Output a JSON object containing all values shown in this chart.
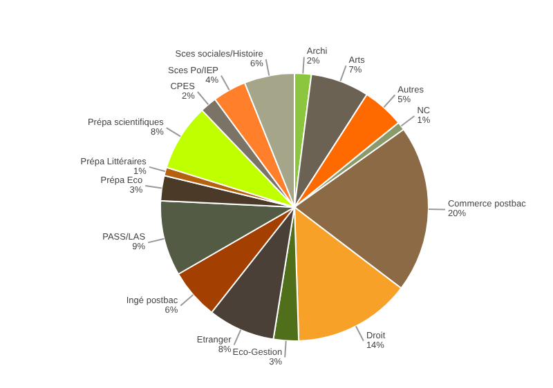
{
  "chart_data": {
    "type": "pie",
    "categories": [
      "Archi",
      "Arts",
      "Autres",
      "NC",
      "Commerce postbac",
      "Droit",
      "Eco-Gestion",
      "Etranger",
      "Ingé postbac",
      "PASS/LAS",
      "Prépa Eco",
      "Prépa Littéraires",
      "Prépa scientifiques",
      "CPES",
      "Sces Po/IEP",
      "Sces sociales/Histoire"
    ],
    "values": [
      2,
      7,
      5,
      1,
      20,
      14,
      3,
      8,
      6,
      9,
      3,
      1,
      8,
      2,
      4,
      6
    ],
    "value_labels": [
      "2%",
      "7%",
      "5%",
      "1%",
      "20%",
      "14%",
      "3%",
      "8%",
      "6%",
      "9%",
      "3%",
      "1%",
      "8%",
      "2%",
      "4%",
      "6%"
    ],
    "colors": [
      "#8cc63f",
      "#6b6253",
      "#ff6a00",
      "#8a9a6a",
      "#8c6a46",
      "#f7a128",
      "#4f6f1a",
      "#4a4038",
      "#a33f00",
      "#545b45",
      "#4b3a28",
      "#b5620f",
      "#bfff00",
      "#7b7466",
      "#ff7f2a",
      "#a5a58a"
    ]
  }
}
